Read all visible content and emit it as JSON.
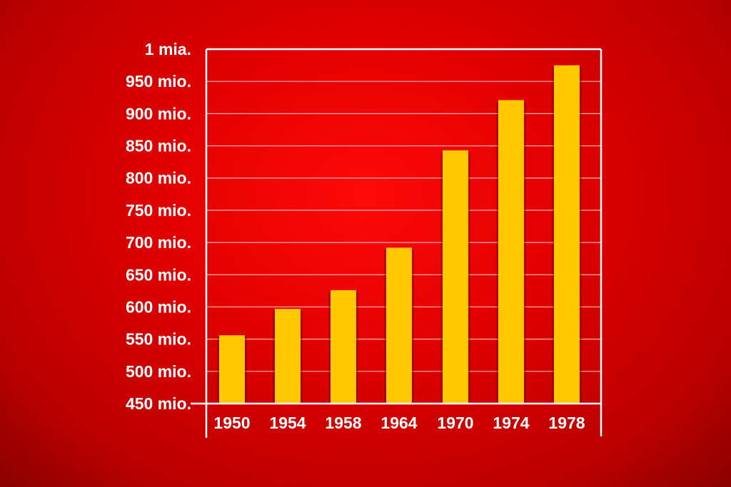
{
  "chart_data": {
    "type": "bar",
    "title": "",
    "xlabel": "",
    "ylabel": "",
    "categories": [
      "1950",
      "1954",
      "1958",
      "1964",
      "1970",
      "1974",
      "1978"
    ],
    "values": [
      556,
      597,
      626,
      692,
      843,
      921,
      975
    ],
    "unit": "millions",
    "ylim": [
      450,
      1000
    ],
    "yticks": [
      {
        "value": 1000,
        "label": "1 mia."
      },
      {
        "value": 950,
        "label": "950 mio."
      },
      {
        "value": 900,
        "label": "900 mio."
      },
      {
        "value": 850,
        "label": "850 mio."
      },
      {
        "value": 800,
        "label": "800 mio."
      },
      {
        "value": 750,
        "label": "750 mio."
      },
      {
        "value": 700,
        "label": "700 mio."
      },
      {
        "value": 650,
        "label": "650 mio."
      },
      {
        "value": 600,
        "label": "600 mio."
      },
      {
        "value": 550,
        "label": "550 mio."
      },
      {
        "value": 500,
        "label": "500 mio."
      },
      {
        "value": 450,
        "label": "450 mio."
      }
    ],
    "grid": true,
    "legend": "none",
    "colors": {
      "bar": "#ffc800",
      "background": "#e00000",
      "axis": "#ffffff"
    }
  }
}
